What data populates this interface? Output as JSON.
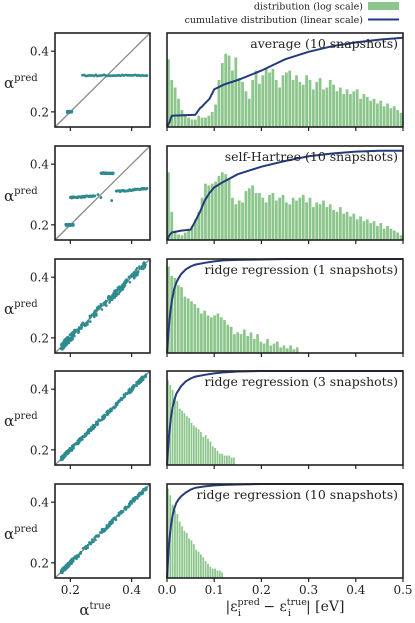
{
  "legend": {
    "hist_label": "distribution (log scale)",
    "line_label": "cumulative distribution (linear scale)",
    "hist_color": "#8cc68c",
    "line_color": "#263b7a"
  },
  "colors": {
    "scatter": "#2e8b8f",
    "diagonal": "#8a8a8a",
    "frame": "#222222"
  },
  "left_axes": {
    "ylabel_main": "α",
    "ylabel_sup": "pred",
    "xlabel_main": "α",
    "xlabel_sup": "true",
    "xticks": [
      0.2,
      0.4
    ],
    "yticks": [
      0.2,
      0.4
    ],
    "xlim": [
      0.15,
      0.46
    ],
    "ylim": [
      0.15,
      0.46
    ]
  },
  "right_axes": {
    "xlabel_text": "|ε",
    "xlabel_sub": "i",
    "xlabel_sup1": "pred",
    "xlabel_minus": " − ε",
    "xlabel_sup2": "true",
    "xlabel_unit": "| [eV]",
    "xticks": [
      0.0,
      0.1,
      0.2,
      0.3,
      0.4,
      0.5
    ],
    "xticklabels": [
      "0.0",
      "0.1",
      "0.2",
      "0.3",
      "0.4",
      "0.5"
    ],
    "xlim": [
      0,
      0.5
    ]
  },
  "chart_data": [
    {
      "type": "scatter",
      "title": "average (10 snapshots)",
      "scatter_groups": [
        {
          "x": [
            0.19,
            0.205
          ],
          "y": [
            0.2,
            0.2
          ]
        },
        {
          "x": [
            0.24,
            0.45
          ],
          "y": [
            0.32,
            0.32
          ]
        }
      ],
      "hist_max_x": 0.5,
      "hist_bins": [
        0.72,
        0.5,
        0.42,
        0.3,
        0.18,
        0.12,
        0.1,
        0.08,
        0.08,
        0.12,
        0.1,
        0.1,
        0.12,
        0.16,
        0.24,
        0.5,
        0.68,
        0.78,
        0.76,
        0.6,
        0.74,
        0.52,
        0.48,
        0.38,
        0.3,
        0.5,
        0.6,
        0.46,
        0.55,
        0.62,
        0.58,
        0.62,
        0.5,
        0.42,
        0.55,
        0.58,
        0.6,
        0.5,
        0.55,
        0.48,
        0.45,
        0.55,
        0.5,
        0.4,
        0.48,
        0.52,
        0.4,
        0.42,
        0.5,
        0.45,
        0.38,
        0.42,
        0.35,
        0.4,
        0.35,
        0.38,
        0.4,
        0.3,
        0.35,
        0.32,
        0.28,
        0.3,
        0.25,
        0.28,
        0.22,
        0.25,
        0.2,
        0.22,
        0.18,
        0.15
      ],
      "cumulative": {
        "x": [
          0,
          0.005,
          0.01,
          0.06,
          0.07,
          0.075,
          0.08,
          0.09,
          0.1,
          0.12,
          0.15,
          0.2,
          0.25,
          0.3,
          0.35,
          0.4,
          0.45,
          0.5
        ],
        "y": [
          0,
          0.05,
          0.12,
          0.13,
          0.2,
          0.22,
          0.25,
          0.3,
          0.4,
          0.45,
          0.5,
          0.6,
          0.72,
          0.8,
          0.86,
          0.9,
          0.93,
          0.95
        ]
      }
    },
    {
      "type": "scatter",
      "title": "self-Hartree (10 snapshots)",
      "scatter_groups": [
        {
          "x": [
            0.185,
            0.21
          ],
          "y": [
            0.2,
            0.2
          ]
        },
        {
          "x": [
            0.2,
            0.28
          ],
          "y": [
            0.29,
            0.295
          ]
        },
        {
          "x": [
            0.3,
            0.34
          ],
          "y": [
            0.37,
            0.37
          ]
        },
        {
          "x": [
            0.35,
            0.45
          ],
          "y": [
            0.31,
            0.32
          ]
        }
      ],
      "scatter_points": [
        {
          "x": 0.29,
          "y": 0.3
        },
        {
          "x": 0.3,
          "y": 0.29
        },
        {
          "x": 0.335,
          "y": 0.28
        }
      ],
      "hist_max_x": 0.5,
      "hist_bins": [
        0.72,
        0.3,
        0.1,
        0.06,
        0.05,
        0.08,
        0.12,
        0.15,
        0.22,
        0.3,
        0.45,
        0.6,
        0.58,
        0.6,
        0.62,
        0.68,
        0.72,
        0.7,
        0.65,
        0.45,
        0.38,
        0.42,
        0.4,
        0.52,
        0.55,
        0.58,
        0.5,
        0.5,
        0.45,
        0.4,
        0.48,
        0.5,
        0.42,
        0.45,
        0.48,
        0.4,
        0.38,
        0.45,
        0.42,
        0.45,
        0.48,
        0.4,
        0.45,
        0.35,
        0.4,
        0.38,
        0.42,
        0.35,
        0.38,
        0.32,
        0.3,
        0.35,
        0.28,
        0.3,
        0.25,
        0.28,
        0.22,
        0.25,
        0.2,
        0.22,
        0.18,
        0.2,
        0.15,
        0.18,
        0.12,
        0.15,
        0.12,
        0.1,
        0.08,
        0.05
      ],
      "cumulative": {
        "x": [
          0,
          0.005,
          0.01,
          0.03,
          0.05,
          0.06,
          0.07,
          0.08,
          0.09,
          0.1,
          0.12,
          0.15,
          0.2,
          0.25,
          0.3,
          0.35,
          0.4,
          0.45,
          0.5
        ],
        "y": [
          0,
          0.05,
          0.08,
          0.1,
          0.11,
          0.2,
          0.3,
          0.42,
          0.5,
          0.56,
          0.62,
          0.7,
          0.78,
          0.84,
          0.89,
          0.92,
          0.94,
          0.95,
          0.95
        ]
      }
    },
    {
      "type": "scatter",
      "title": "ridge regression (1 snapshots)",
      "hist_max_x": 0.28,
      "hist_bins": [
        0.92,
        0.82,
        0.8,
        0.72,
        0.7,
        0.6,
        0.58,
        0.55,
        0.52,
        0.48,
        0.42,
        0.45,
        0.4,
        0.38,
        0.4,
        0.42,
        0.38,
        0.35,
        0.3,
        0.28,
        0.2,
        0.22,
        0.2,
        0.25,
        0.18,
        0.22,
        0.15,
        0.2,
        0.12,
        0.1,
        0.15,
        0.08,
        0.1,
        0.12,
        0.06,
        0.08,
        0.05,
        0.08,
        0.04,
        0.06
      ],
      "cumulative": {
        "x": [
          0,
          0.005,
          0.01,
          0.015,
          0.02,
          0.025,
          0.03,
          0.04,
          0.05,
          0.06,
          0.08,
          0.1,
          0.12,
          0.15,
          0.2,
          0.25,
          0.3,
          0.4,
          0.5
        ],
        "y": [
          0,
          0.35,
          0.55,
          0.68,
          0.75,
          0.8,
          0.84,
          0.89,
          0.92,
          0.94,
          0.96,
          0.975,
          0.985,
          0.99,
          0.995,
          1.0,
          1.0,
          1.0,
          1.0
        ]
      }
    },
    {
      "type": "scatter",
      "title": "ridge regression (3 snapshots)",
      "hist_max_x": 0.145,
      "hist_bins": [
        0.9,
        0.85,
        0.8,
        0.7,
        0.68,
        0.6,
        0.58,
        0.55,
        0.52,
        0.5,
        0.45,
        0.42,
        0.4,
        0.38,
        0.35,
        0.3,
        0.32,
        0.28,
        0.25,
        0.2,
        0.18,
        0.15,
        0.12,
        0.12,
        0.1,
        0.1,
        0.1,
        0.08,
        0.08
      ],
      "cumulative": {
        "x": [
          0,
          0.004,
          0.008,
          0.012,
          0.016,
          0.02,
          0.025,
          0.03,
          0.04,
          0.05,
          0.06,
          0.08,
          0.1,
          0.12,
          0.15,
          0.2,
          0.3,
          0.5
        ],
        "y": [
          0,
          0.3,
          0.5,
          0.62,
          0.7,
          0.76,
          0.8,
          0.84,
          0.89,
          0.92,
          0.94,
          0.96,
          0.975,
          0.985,
          0.995,
          1.0,
          1.0,
          1.0
        ]
      }
    },
    {
      "type": "scatter",
      "title": "ridge regression (10 snapshots)",
      "hist_max_x": 0.12,
      "hist_bins": [
        0.95,
        0.88,
        0.78,
        0.72,
        0.68,
        0.6,
        0.55,
        0.5,
        0.48,
        0.42,
        0.4,
        0.36,
        0.3,
        0.28,
        0.25,
        0.22,
        0.18,
        0.15,
        0.12,
        0.1,
        0.1,
        0.08,
        0.08,
        0.06
      ],
      "cumulative": {
        "x": [
          0,
          0.004,
          0.008,
          0.012,
          0.016,
          0.02,
          0.025,
          0.03,
          0.04,
          0.05,
          0.06,
          0.08,
          0.1,
          0.12,
          0.15,
          0.2,
          0.3,
          0.5
        ],
        "y": [
          0,
          0.35,
          0.55,
          0.67,
          0.75,
          0.8,
          0.84,
          0.87,
          0.91,
          0.94,
          0.96,
          0.975,
          0.985,
          0.99,
          0.995,
          1.0,
          1.0,
          1.0
        ]
      }
    }
  ]
}
